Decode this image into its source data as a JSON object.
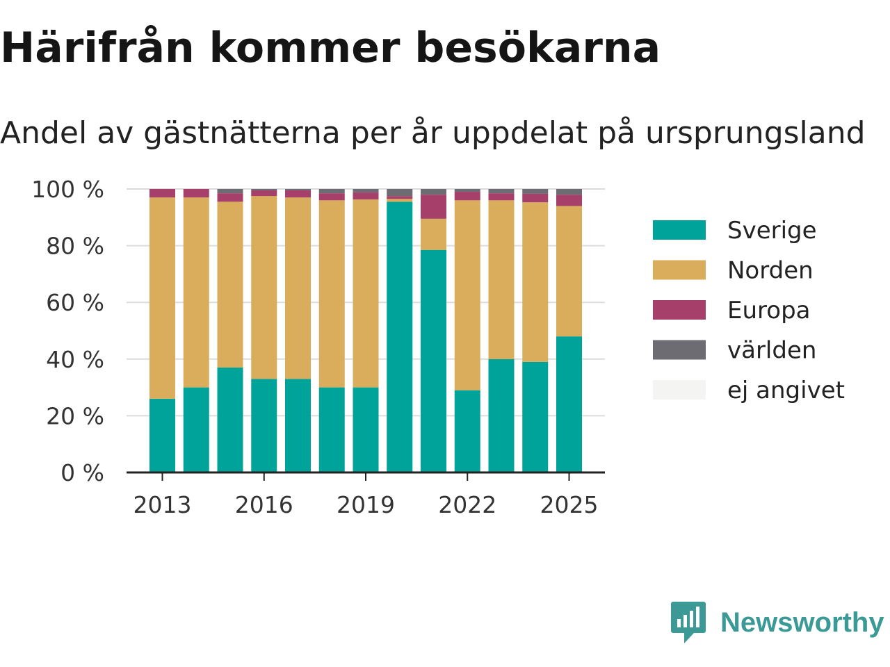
{
  "title": "Härifrån kommer besökarna",
  "subtitle": "Andel av gästnätterna per år uppdelat på ursprungsland",
  "brand": {
    "name": "Newsworthy",
    "icon": "newsworthy-logo-icon",
    "color": "#3b9a95"
  },
  "chart_data": {
    "type": "bar",
    "stacked": true,
    "categories": [
      2013,
      2014,
      2015,
      2016,
      2017,
      2018,
      2019,
      2020,
      2021,
      2022,
      2023,
      2024,
      2025
    ],
    "x_ticks": [
      "2013",
      "2016",
      "2019",
      "2022",
      "2025"
    ],
    "y_ticks": [
      "0 %",
      "20 %",
      "40 %",
      "60 %",
      "80 %",
      "100 %"
    ],
    "ylim": [
      0,
      100
    ],
    "grid": true,
    "legend_position": "right",
    "series": [
      {
        "name": "Sverige",
        "color": "#00a39a",
        "values": [
          26,
          30,
          37,
          33,
          33,
          30,
          30,
          95.5,
          78.5,
          29,
          40,
          39,
          48
        ]
      },
      {
        "name": "Norden",
        "color": "#d9ad5b",
        "values": [
          71,
          67,
          58.5,
          64.5,
          64,
          66,
          66.3,
          1,
          11,
          67,
          56,
          56.3,
          46
        ]
      },
      {
        "name": "Europa",
        "color": "#a63f69",
        "values": [
          3,
          3,
          3,
          2,
          2.5,
          2.5,
          2.5,
          1,
          8.5,
          3,
          2.5,
          3,
          4
        ]
      },
      {
        "name": "världen",
        "color": "#6d6c73",
        "values": [
          0,
          0,
          1.5,
          0.5,
          0.5,
          1.5,
          1.2,
          2.5,
          2,
          1,
          1.5,
          1.7,
          2
        ]
      },
      {
        "name": "ej angivet",
        "color": "#f4f4f3",
        "values": [
          0,
          0,
          0,
          0,
          0,
          0,
          0,
          0,
          0,
          0,
          0,
          0,
          0
        ]
      }
    ]
  }
}
